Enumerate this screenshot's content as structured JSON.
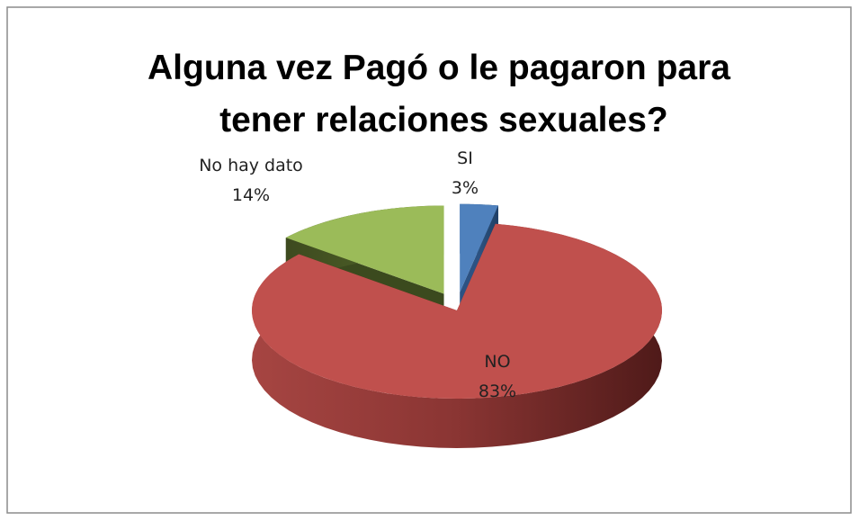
{
  "chart_data": {
    "type": "pie3d",
    "title": "Alguna vez Pagó o le pagaron para tener relaciones sexuales?",
    "categories": [
      "SI",
      "NO",
      "No hay dato"
    ],
    "values": [
      3,
      83,
      14
    ],
    "value_labels": [
      "3%",
      "83%",
      "14%"
    ],
    "colors": [
      "#4f81bd",
      "#c0504d",
      "#9bbb59"
    ],
    "exploded": [
      true,
      false,
      true
    ]
  }
}
